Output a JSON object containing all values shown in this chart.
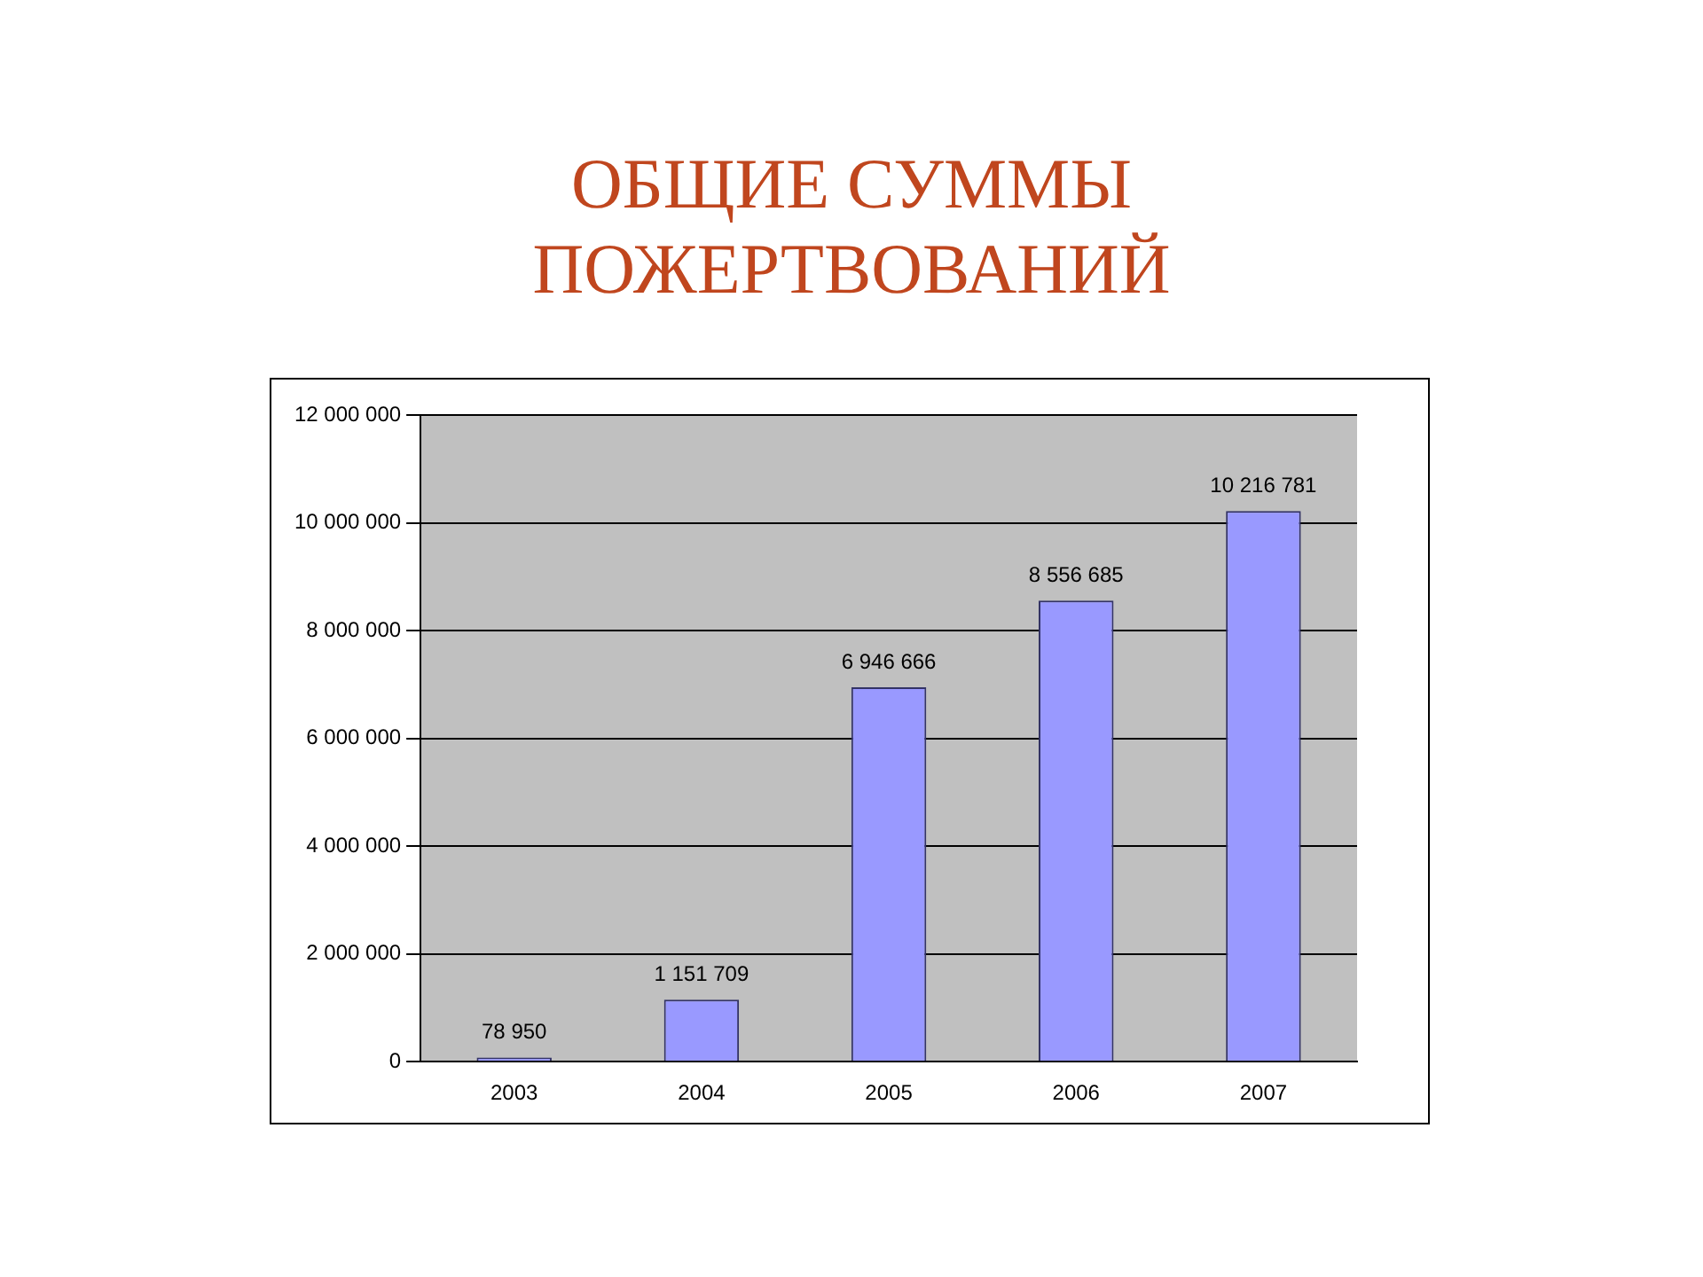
{
  "chart_data": {
    "type": "bar",
    "title": "ОБЩИЕ СУММЫ ПОЖЕРТВОВАНИЙ",
    "categories": [
      "2003",
      "2004",
      "2005",
      "2006",
      "2007"
    ],
    "values": [
      78950,
      1151709,
      6946666,
      8556685,
      10216781
    ],
    "value_labels": [
      "78 950",
      "1 151 709",
      "6 946 666",
      "8 556 685",
      "10 216 781"
    ],
    "color": "#9999ff",
    "ylim": [
      0,
      12000000
    ],
    "yticks": [
      {
        "value": 0,
        "label": "0"
      },
      {
        "value": 2000000,
        "label": "2 000 000"
      },
      {
        "value": 4000000,
        "label": "4 000 000"
      },
      {
        "value": 6000000,
        "label": "6 000 000"
      },
      {
        "value": 8000000,
        "label": "8 000 000"
      },
      {
        "value": 10000000,
        "label": "10 000 000"
      },
      {
        "value": 12000000,
        "label": "12 000 000"
      }
    ],
    "grid": "y",
    "legend": false
  }
}
